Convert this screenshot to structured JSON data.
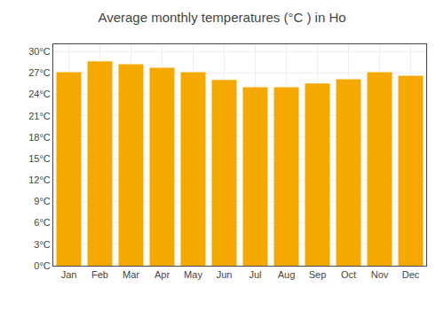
{
  "chart_data": {
    "type": "bar",
    "title": "Average monthly temperatures (°C ) in Ho",
    "categories": [
      "Jan",
      "Feb",
      "Mar",
      "Apr",
      "May",
      "Jun",
      "Jul",
      "Aug",
      "Sep",
      "Oct",
      "Nov",
      "Dec"
    ],
    "values": [
      27.1,
      28.6,
      28.2,
      27.7,
      27.1,
      26.0,
      25.0,
      25.0,
      25.5,
      26.1,
      27.1,
      26.6
    ],
    "color": "#F5A800",
    "ylim": [
      0,
      31
    ],
    "yticks": [
      {
        "value": 0,
        "label": "0°C"
      },
      {
        "value": 3,
        "label": "3°C"
      },
      {
        "value": 6,
        "label": "6°C"
      },
      {
        "value": 9,
        "label": "9°C"
      },
      {
        "value": 12,
        "label": "12°C"
      },
      {
        "value": 15,
        "label": "15°C"
      },
      {
        "value": 18,
        "label": "18°C"
      },
      {
        "value": 21,
        "label": "21°C"
      },
      {
        "value": 24,
        "label": "24°C"
      },
      {
        "value": 27,
        "label": "27°C"
      },
      {
        "value": 30,
        "label": "30°C"
      }
    ],
    "grid": true
  }
}
